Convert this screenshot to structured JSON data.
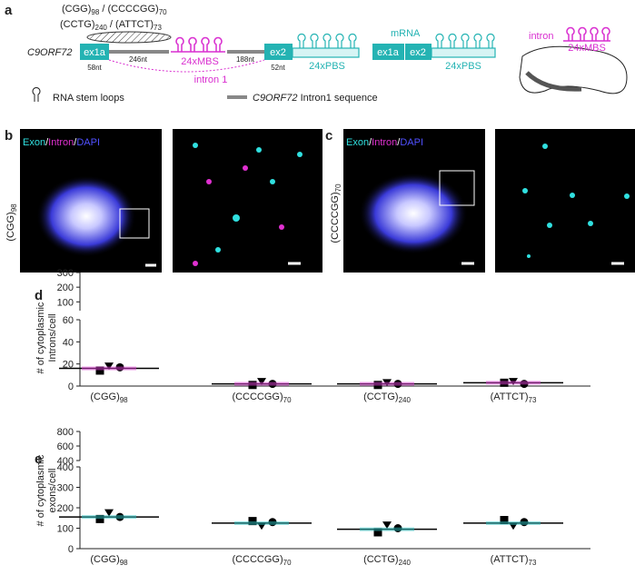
{
  "panels": [
    "a",
    "b",
    "c",
    "d",
    "e"
  ],
  "diagram": {
    "repeats": [
      "(CGG)",
      "(CCCCGG)",
      "(CCTG)",
      "(ATTCT)"
    ],
    "repeat_subs": [
      "98",
      "70",
      "240",
      "73"
    ],
    "separator": "/",
    "gene": "C9ORF72",
    "exon1": "ex1a",
    "exon1_len": "58nt",
    "intron_left_len": "246nt",
    "mbs": "24xMBS",
    "intron_right_len": "188nt",
    "exon2": "ex2",
    "exon2_len": "52nt",
    "pbs": "24xPBS",
    "intron_label": "intron 1",
    "mrna": "mRNA",
    "cell_intron": "intron",
    "legend_loops": "RNA stem loops",
    "legend_gene": "C9ORF72",
    "legend_rest": " Intron1 sequence"
  },
  "micrographs": [
    {
      "stain": [
        "Exon",
        "/",
        "Intron",
        "/",
        "DAPI"
      ],
      "condition": "(CGG)",
      "condition_sub": "98"
    },
    {
      "stain": [
        "Exon",
        "/",
        "Intron",
        "/",
        "DAPI"
      ],
      "condition": "(CCCCGG)",
      "condition_sub": "70"
    }
  ],
  "chart_data": [
    {
      "type": "scatter",
      "ylabel": [
        "# of cytoplasmic",
        "Introns/cell"
      ],
      "categories": [
        "(CGG)",
        "(CCCCGG)",
        "(CCTG)",
        "(ATTCT)"
      ],
      "category_subs": [
        "98",
        "70",
        "240",
        "73"
      ],
      "color": "#e23fd8",
      "ylim": [
        0,
        60
      ],
      "yticks": [
        0,
        20,
        40,
        60
      ],
      "ylim_upper": [
        40,
        300
      ],
      "yticks_upper": [
        100,
        200,
        300
      ],
      "mean": [
        16,
        2,
        2,
        3
      ],
      "series": [
        {
          "marker": "square",
          "values": [
            14,
            1,
            1,
            3
          ]
        },
        {
          "marker": "triangle",
          "values": [
            18,
            4,
            3,
            4
          ]
        },
        {
          "marker": "circle",
          "values": [
            17,
            2,
            2,
            2
          ]
        }
      ]
    },
    {
      "type": "scatter",
      "ylabel": [
        "# of cytoplasmic",
        "exons/cell"
      ],
      "categories": [
        "(CGG)",
        "(CCCCGG)",
        "(CCTG)",
        "(ATTCT)"
      ],
      "category_subs": [
        "98",
        "70",
        "240",
        "73"
      ],
      "color": "#2cc4c4",
      "ylim": [
        0,
        400
      ],
      "yticks": [
        0,
        100,
        200,
        300,
        400
      ],
      "ylim_upper": [
        400,
        800
      ],
      "yticks_upper": [
        400,
        600,
        800
      ],
      "mean": [
        155,
        125,
        95,
        125
      ],
      "series": [
        {
          "marker": "square",
          "values": [
            145,
            135,
            80,
            140
          ]
        },
        {
          "marker": "triangle",
          "values": [
            175,
            110,
            115,
            110
          ]
        },
        {
          "marker": "circle",
          "values": [
            155,
            130,
            100,
            130
          ]
        }
      ]
    }
  ]
}
